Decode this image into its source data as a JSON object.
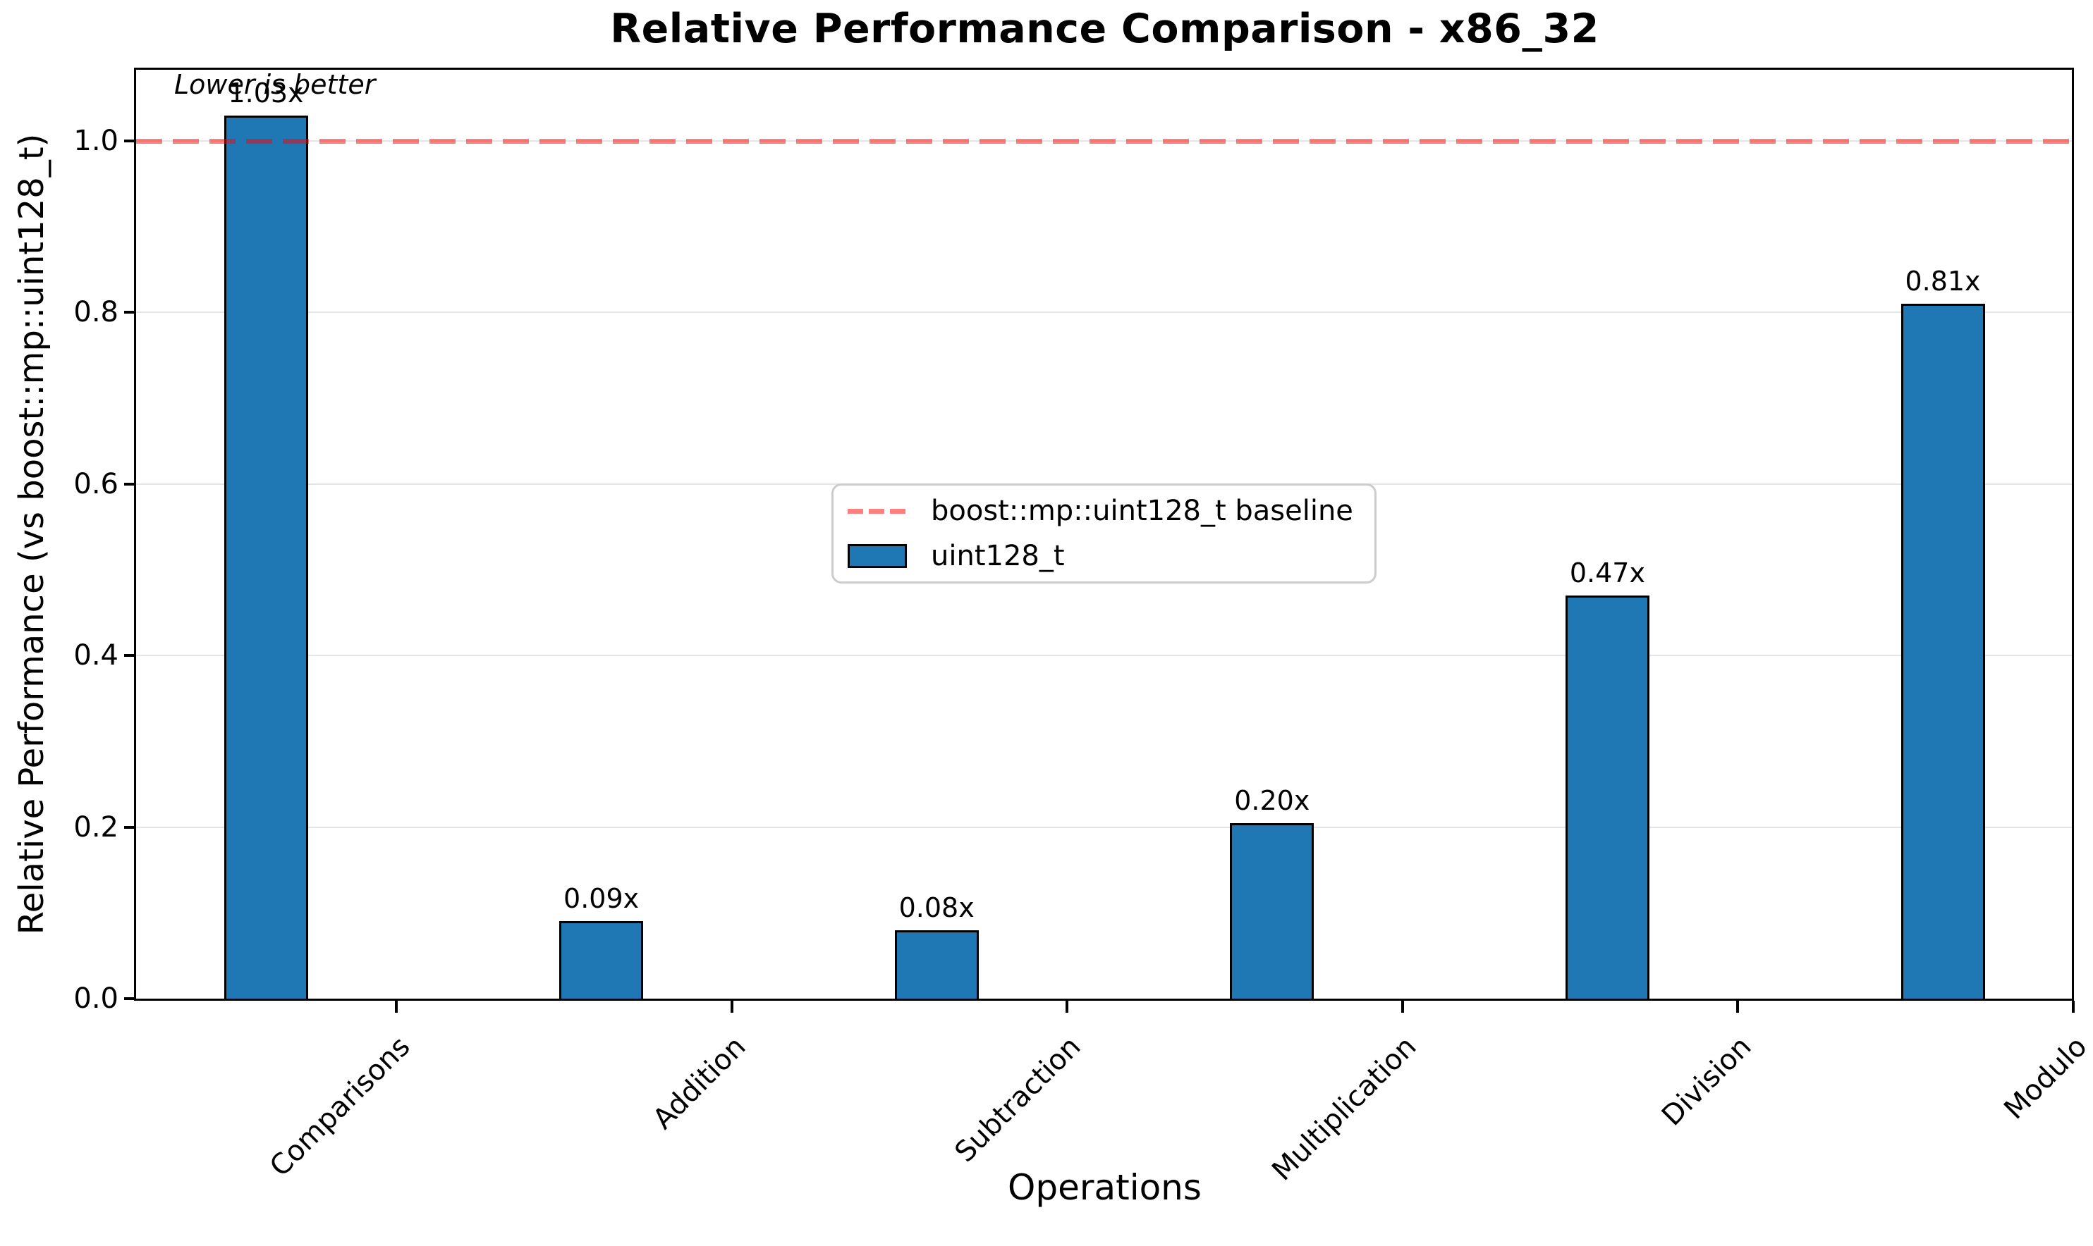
{
  "figure": {
    "title": "Relative Performance Comparison - x86_32",
    "annotation": "Lower is better",
    "xlabel": "Operations",
    "ylabel": "Relative Performance (vs boost::mp::uint128_t)"
  },
  "legend": {
    "baseline_label": "boost::mp::uint128_t baseline",
    "series_label": "uint128_t"
  },
  "chart_data": {
    "type": "bar",
    "title": "Relative Performance Comparison - x86_32",
    "xlabel": "Operations",
    "ylabel": "Relative Performance (vs boost::mp::uint128_t)",
    "categories": [
      "Comparisons",
      "Addition",
      "Subtraction",
      "Multiplication",
      "Division",
      "Modulo"
    ],
    "series": [
      {
        "name": "uint128_t",
        "values": [
          1.03,
          0.09,
          0.08,
          0.205,
          0.47,
          0.81
        ],
        "bar_labels": [
          "1.03x",
          "0.09x",
          "0.08x",
          "0.20x",
          "0.47x",
          "0.81x"
        ]
      }
    ],
    "baseline": {
      "value": 1.0,
      "label": "boost::mp::uint128_t baseline"
    },
    "annotation": "Lower is better",
    "yticks": [
      0.0,
      0.2,
      0.4,
      0.6,
      0.8,
      1.0
    ],
    "ytick_labels": [
      "0.0",
      "0.2",
      "0.4",
      "0.6",
      "0.8",
      "1.0"
    ],
    "ylim": [
      0,
      1.083
    ],
    "grid": "horizontal",
    "legend_position": "center",
    "colors": {
      "bar": "#1f77b4",
      "bar_edge": "#000000",
      "baseline": "rgba(255,0,0,0.5)",
      "grid": "#e5e5e5"
    }
  }
}
